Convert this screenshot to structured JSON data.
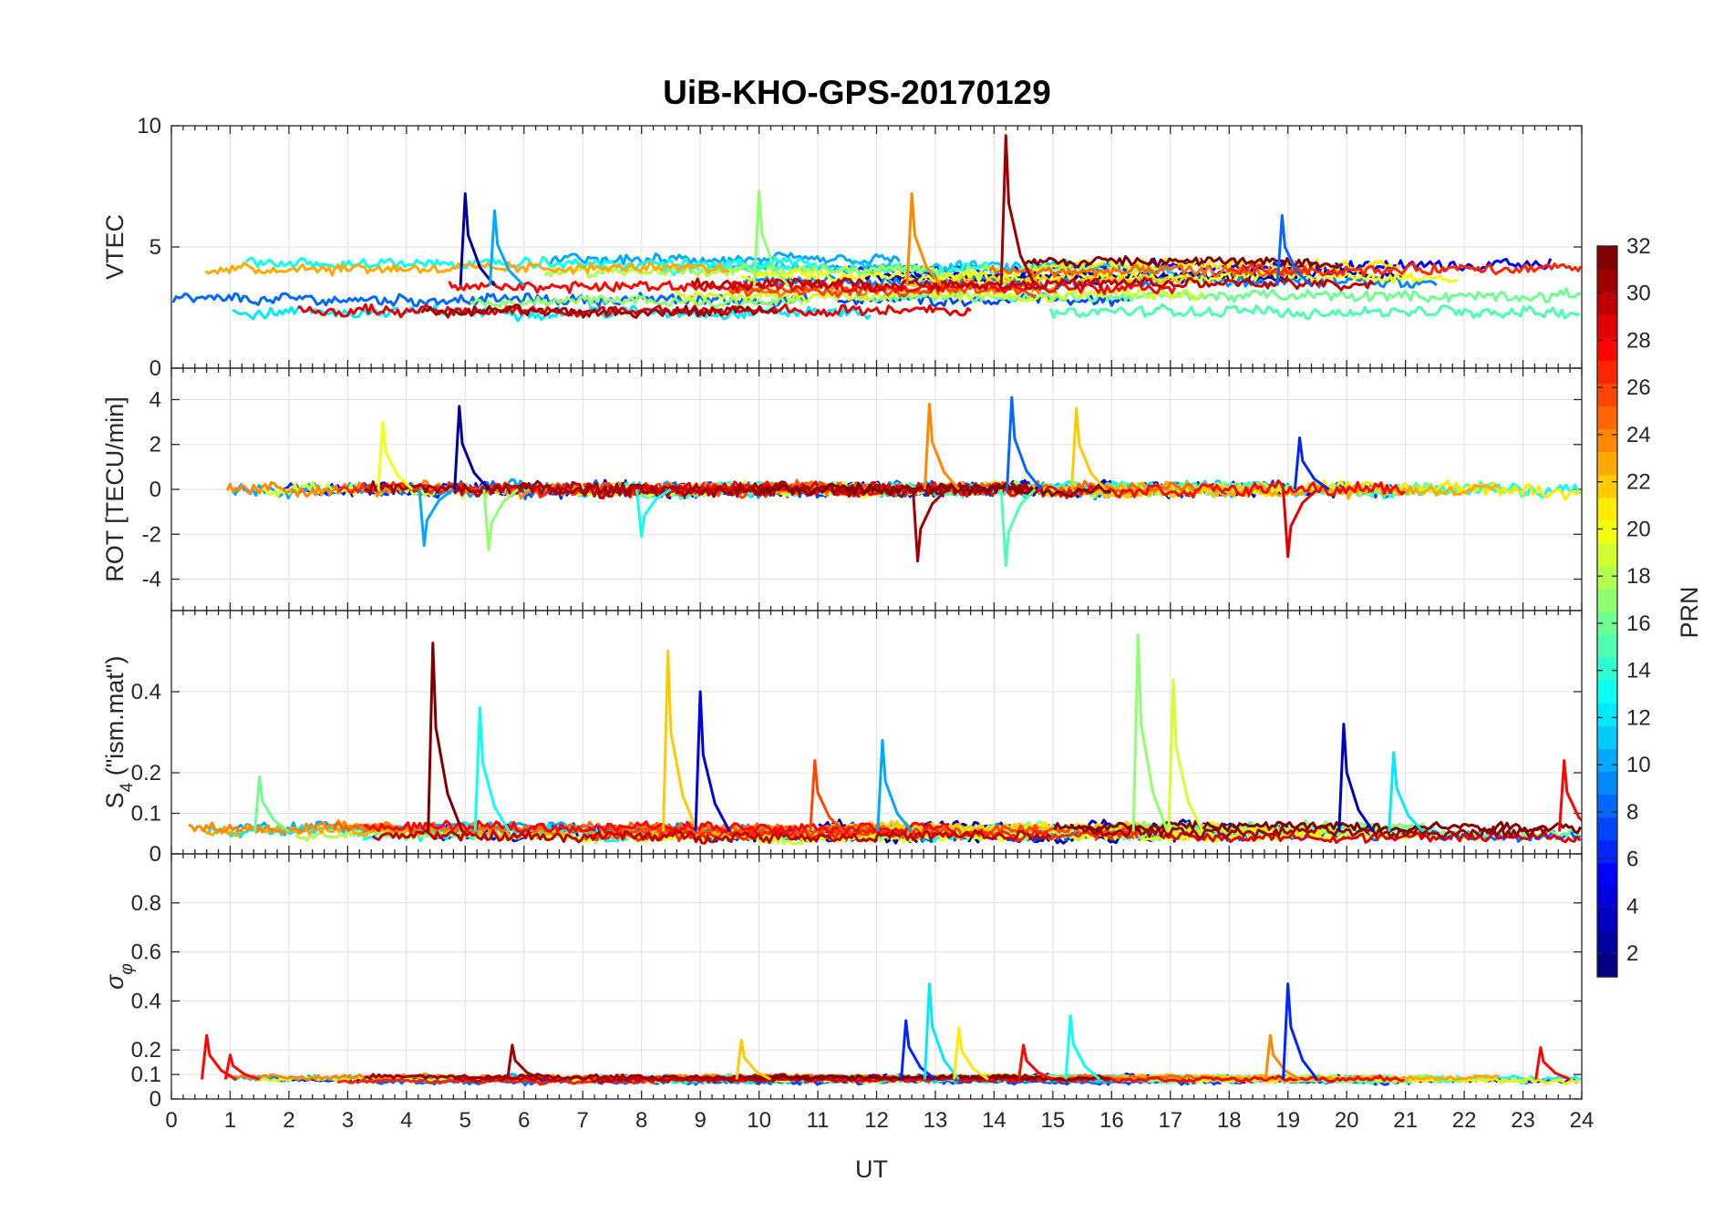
{
  "chart_data": {
    "type": "line",
    "title": "UiB-KHO-GPS-20170129",
    "xlabel": "UT",
    "x_ticks": [
      "0",
      "1",
      "2",
      "3",
      "4",
      "5",
      "6",
      "7",
      "8",
      "9",
      "10",
      "11",
      "12",
      "13",
      "14",
      "15",
      "16",
      "17",
      "18",
      "19",
      "20",
      "21",
      "22",
      "23",
      "24"
    ],
    "xlim": [
      0,
      24
    ],
    "grid": true,
    "panels": [
      {
        "id": "vtec",
        "ylabel": "VTEC",
        "ylim": [
          0,
          10
        ],
        "y_ticks": [
          0,
          5,
          10
        ],
        "y_tick_labels": [
          "0",
          "5",
          "10"
        ],
        "base": 3.4,
        "spread": 1.1,
        "noise": 0.35
      },
      {
        "id": "rot",
        "ylabel": "ROT [TECU/min]",
        "ylim": [
          -5.4,
          5.4
        ],
        "y_ticks": [
          -4,
          -2,
          0,
          2,
          4
        ],
        "y_tick_labels": [
          "-4",
          "-2",
          "0",
          "2",
          "4"
        ],
        "base": 0.0,
        "spread": 0.0,
        "noise": 0.45
      },
      {
        "id": "s4",
        "ylabel_main": "S",
        "ylabel_sub": "4",
        "ylabel_tail": " (\"ism.mat\")",
        "ylim": [
          0,
          0.6
        ],
        "y_ticks": [
          0,
          0.1,
          0.2,
          0.4
        ],
        "y_tick_labels": [
          "0",
          "0.1",
          "0.2",
          "0.4"
        ],
        "base": 0.055,
        "spread": 0.015,
        "noise": 0.02
      },
      {
        "id": "sigma_phi",
        "ylabel_main": "σ",
        "ylabel_sub": "φ",
        "ylim": [
          0,
          1
        ],
        "y_ticks": [
          0,
          0.1,
          0.2,
          0.4,
          0.6,
          0.8
        ],
        "y_tick_labels": [
          "0",
          "0.1",
          "0.2",
          "0.4",
          "0.6",
          "0.8"
        ],
        "base": 0.08,
        "spread": 0.01,
        "noise": 0.015
      }
    ],
    "colorbar": {
      "label": "PRN",
      "range": [
        1,
        32
      ],
      "ticks": [
        2,
        4,
        6,
        8,
        10,
        12,
        14,
        16,
        18,
        20,
        22,
        24,
        26,
        28,
        30,
        32
      ],
      "colormap": "jet"
    },
    "series_prn": [
      2,
      3,
      5,
      6,
      7,
      8,
      9,
      10,
      11,
      12,
      13,
      14,
      15,
      16,
      17,
      18,
      19,
      20,
      21,
      22,
      23,
      24,
      25,
      26,
      27,
      28,
      29,
      30,
      31,
      32
    ],
    "vtec_peaks": [
      {
        "t": 5.0,
        "v": 7.2
      },
      {
        "t": 5.5,
        "v": 6.5
      },
      {
        "t": 10.0,
        "v": 7.3
      },
      {
        "t": 12.6,
        "v": 7.2
      },
      {
        "t": 14.2,
        "v": 9.6
      },
      {
        "t": 18.9,
        "v": 6.3
      }
    ],
    "rot_peaks": [
      {
        "t": 4.9,
        "v": 3.7
      },
      {
        "t": 4.3,
        "v": -2.5
      },
      {
        "t": 5.4,
        "v": -2.7
      },
      {
        "t": 12.9,
        "v": 3.8
      },
      {
        "t": 12.7,
        "v": -3.2
      },
      {
        "t": 14.3,
        "v": 4.1
      },
      {
        "t": 14.2,
        "v": -3.4
      },
      {
        "t": 15.4,
        "v": 3.6
      },
      {
        "t": 19.0,
        "v": -3.0
      },
      {
        "t": 19.2,
        "v": 2.3
      },
      {
        "t": 8.0,
        "v": -2.1
      },
      {
        "t": 3.6,
        "v": 3.0
      }
    ],
    "s4_peaks": [
      {
        "t": 4.45,
        "v": 0.52,
        "prn": 32
      },
      {
        "t": 5.25,
        "v": 0.36,
        "prn": 13
      },
      {
        "t": 8.45,
        "v": 0.5,
        "prn": 22
      },
      {
        "t": 9.0,
        "v": 0.4,
        "prn": 4
      },
      {
        "t": 12.1,
        "v": 0.28,
        "prn": 10
      },
      {
        "t": 16.45,
        "v": 0.54,
        "prn": 17
      },
      {
        "t": 17.05,
        "v": 0.43,
        "prn": 19
      },
      {
        "t": 19.95,
        "v": 0.32,
        "prn": 3
      },
      {
        "t": 20.8,
        "v": 0.25,
        "prn": 12
      },
      {
        "t": 23.7,
        "v": 0.23,
        "prn": 28
      },
      {
        "t": 1.5,
        "v": 0.19,
        "prn": 16
      },
      {
        "t": 10.95,
        "v": 0.23,
        "prn": 26
      }
    ],
    "sigma_phi_peaks": [
      {
        "t": 0.6,
        "v": 0.26,
        "prn": 28
      },
      {
        "t": 1.0,
        "v": 0.18,
        "prn": 28
      },
      {
        "t": 5.8,
        "v": 0.22,
        "prn": 31
      },
      {
        "t": 9.7,
        "v": 0.24,
        "prn": 22
      },
      {
        "t": 12.5,
        "v": 0.32,
        "prn": 6
      },
      {
        "t": 12.9,
        "v": 0.47,
        "prn": 12
      },
      {
        "t": 13.4,
        "v": 0.29,
        "prn": 21
      },
      {
        "t": 14.5,
        "v": 0.22,
        "prn": 28
      },
      {
        "t": 15.3,
        "v": 0.34,
        "prn": 13
      },
      {
        "t": 18.7,
        "v": 0.26,
        "prn": 24
      },
      {
        "t": 19.0,
        "v": 0.47,
        "prn": 6
      },
      {
        "t": 23.3,
        "v": 0.21,
        "prn": 28
      }
    ]
  }
}
